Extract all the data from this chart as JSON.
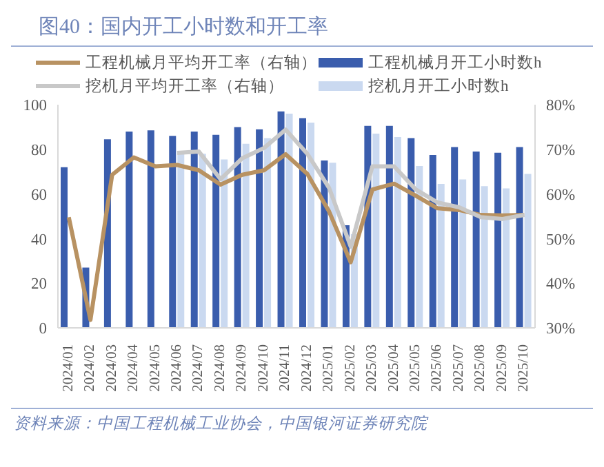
{
  "chart_data": {
    "type": "bar",
    "title": "图40：国内开工小时数和开工率",
    "categories": [
      "2024/01",
      "2024/02",
      "2024/03",
      "2024/04",
      "2024/05",
      "2024/06",
      "2024/07",
      "2024/08",
      "2024/09",
      "2024/10",
      "2024/11",
      "2024/12",
      "2025/01",
      "2025/02",
      "2025/03",
      "2025/04",
      "2025/05",
      "2025/06",
      "2025/07",
      "2025/08",
      "2025/09",
      "2025/10"
    ],
    "series": [
      {
        "name": "工程机械月开工小时数h",
        "color": "#3a5dad",
        "values": [
          72,
          27,
          84.5,
          88,
          88.5,
          86,
          88,
          86.5,
          90,
          89,
          97,
          94,
          75,
          46,
          90.5,
          90.5,
          85,
          77.5,
          81,
          79,
          78.5,
          81
        ]
      },
      {
        "name": "挖机月开工小时数h",
        "color": "#cad9f0",
        "values": [
          null,
          null,
          null,
          null,
          null,
          78,
          78,
          75.5,
          82.5,
          85,
          96,
          92,
          74,
          42,
          87,
          85.5,
          72.5,
          64.5,
          66.5,
          63.5,
          62.5,
          69
        ]
      },
      {
        "name": "工程机械月平均开工率（右轴）",
        "type": "line",
        "axis": "y2",
        "color": "#b89262",
        "values": [
          54.8,
          31.8,
          64.3,
          68.2,
          66.2,
          66.5,
          65.3,
          62.1,
          64.3,
          65.3,
          68.9,
          64.5,
          56.1,
          44.7,
          61,
          62.3,
          59.6,
          56.8,
          56.4,
          55.3,
          55.2,
          55.3
        ]
      },
      {
        "name": "挖机月平均开工率（右轴）",
        "type": "line",
        "axis": "y2",
        "color": "#c8c8c8",
        "values": [
          null,
          null,
          null,
          null,
          null,
          69.2,
          69.5,
          63.3,
          68,
          70.3,
          74.4,
          69,
          61.4,
          48.2,
          66.2,
          66.2,
          61,
          58.1,
          57,
          54.8,
          54.4,
          55.3
        ]
      }
    ],
    "ylim": [
      0,
      100
    ],
    "yticks": [
      0,
      20,
      40,
      60,
      80,
      100
    ],
    "y2lim": [
      30,
      80
    ],
    "y2ticks": [
      {
        "value": 30,
        "label": "30%"
      },
      {
        "value": 40,
        "label": "40%"
      },
      {
        "value": 50,
        "label": "50%"
      },
      {
        "value": 60,
        "label": "60%"
      },
      {
        "value": 70,
        "label": "70%"
      },
      {
        "value": 80,
        "label": "80%"
      }
    ],
    "grid": false,
    "legend": "top",
    "marker": "none",
    "line_style": "solid",
    "annotations": [
      "资料来源：中国工程机械工业协会，中国银河证券研究院"
    ]
  }
}
